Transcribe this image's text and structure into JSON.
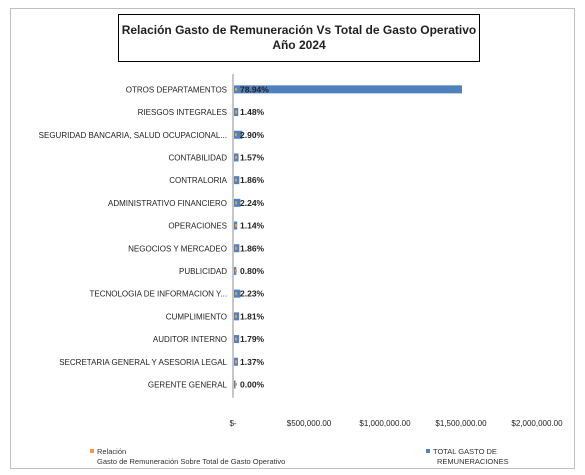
{
  "chart_data": {
    "type": "bar",
    "orientation": "horizontal",
    "title": "Relación Gasto de Remuneración Vs Total de Gasto Operativo",
    "subtitle": "Año 2024",
    "categories": [
      "OTROS DEPARTAMENTOS",
      "RIESGOS INTEGRALES",
      "SEGURIDAD BANCARIA, SALUD OCUPACIONAL...",
      "CONTABILIDAD",
      "CONTRALORIA",
      "ADMINISTRATIVO FINANCIERO",
      "OPERACIONES",
      "NEGOCIOS Y MERCADEO",
      "PUBLICIDAD",
      "TECNOLOGIA DE INFORMACION Y...",
      "CUMPLIMIENTO",
      "AUDITOR INTERNO",
      "SECRETARIA GENERAL Y ASESORIA LEGAL",
      "GERENTE GENERAL"
    ],
    "series": [
      {
        "name": "TOTAL GASTO DE REMUNERACIONES",
        "color": "#4f81bd",
        "values": [
          1500000,
          28000,
          55000,
          30000,
          35000,
          42000,
          21000,
          35000,
          15000,
          42000,
          34000,
          34000,
          26000,
          0
        ]
      },
      {
        "name": "Relación Gasto de Remuneración Sobre Total de Gasto Operativo",
        "color": "#f79646",
        "labels": [
          "78.94%",
          "1.48%",
          "2.90%",
          "1.57%",
          "1.86%",
          "2.24%",
          "1.14%",
          "1.86%",
          "0.80%",
          "2.23%",
          "1.81%",
          "1.79%",
          "1.37%",
          "0.00%"
        ]
      }
    ],
    "x_ticks": [
      "$-",
      "$500,000.00",
      "$1,000,000.00",
      "$1,500,000.00",
      "$2,000,000.00"
    ],
    "xlim": [
      0,
      2000000
    ],
    "grid": false,
    "legend_position": "bottom"
  }
}
